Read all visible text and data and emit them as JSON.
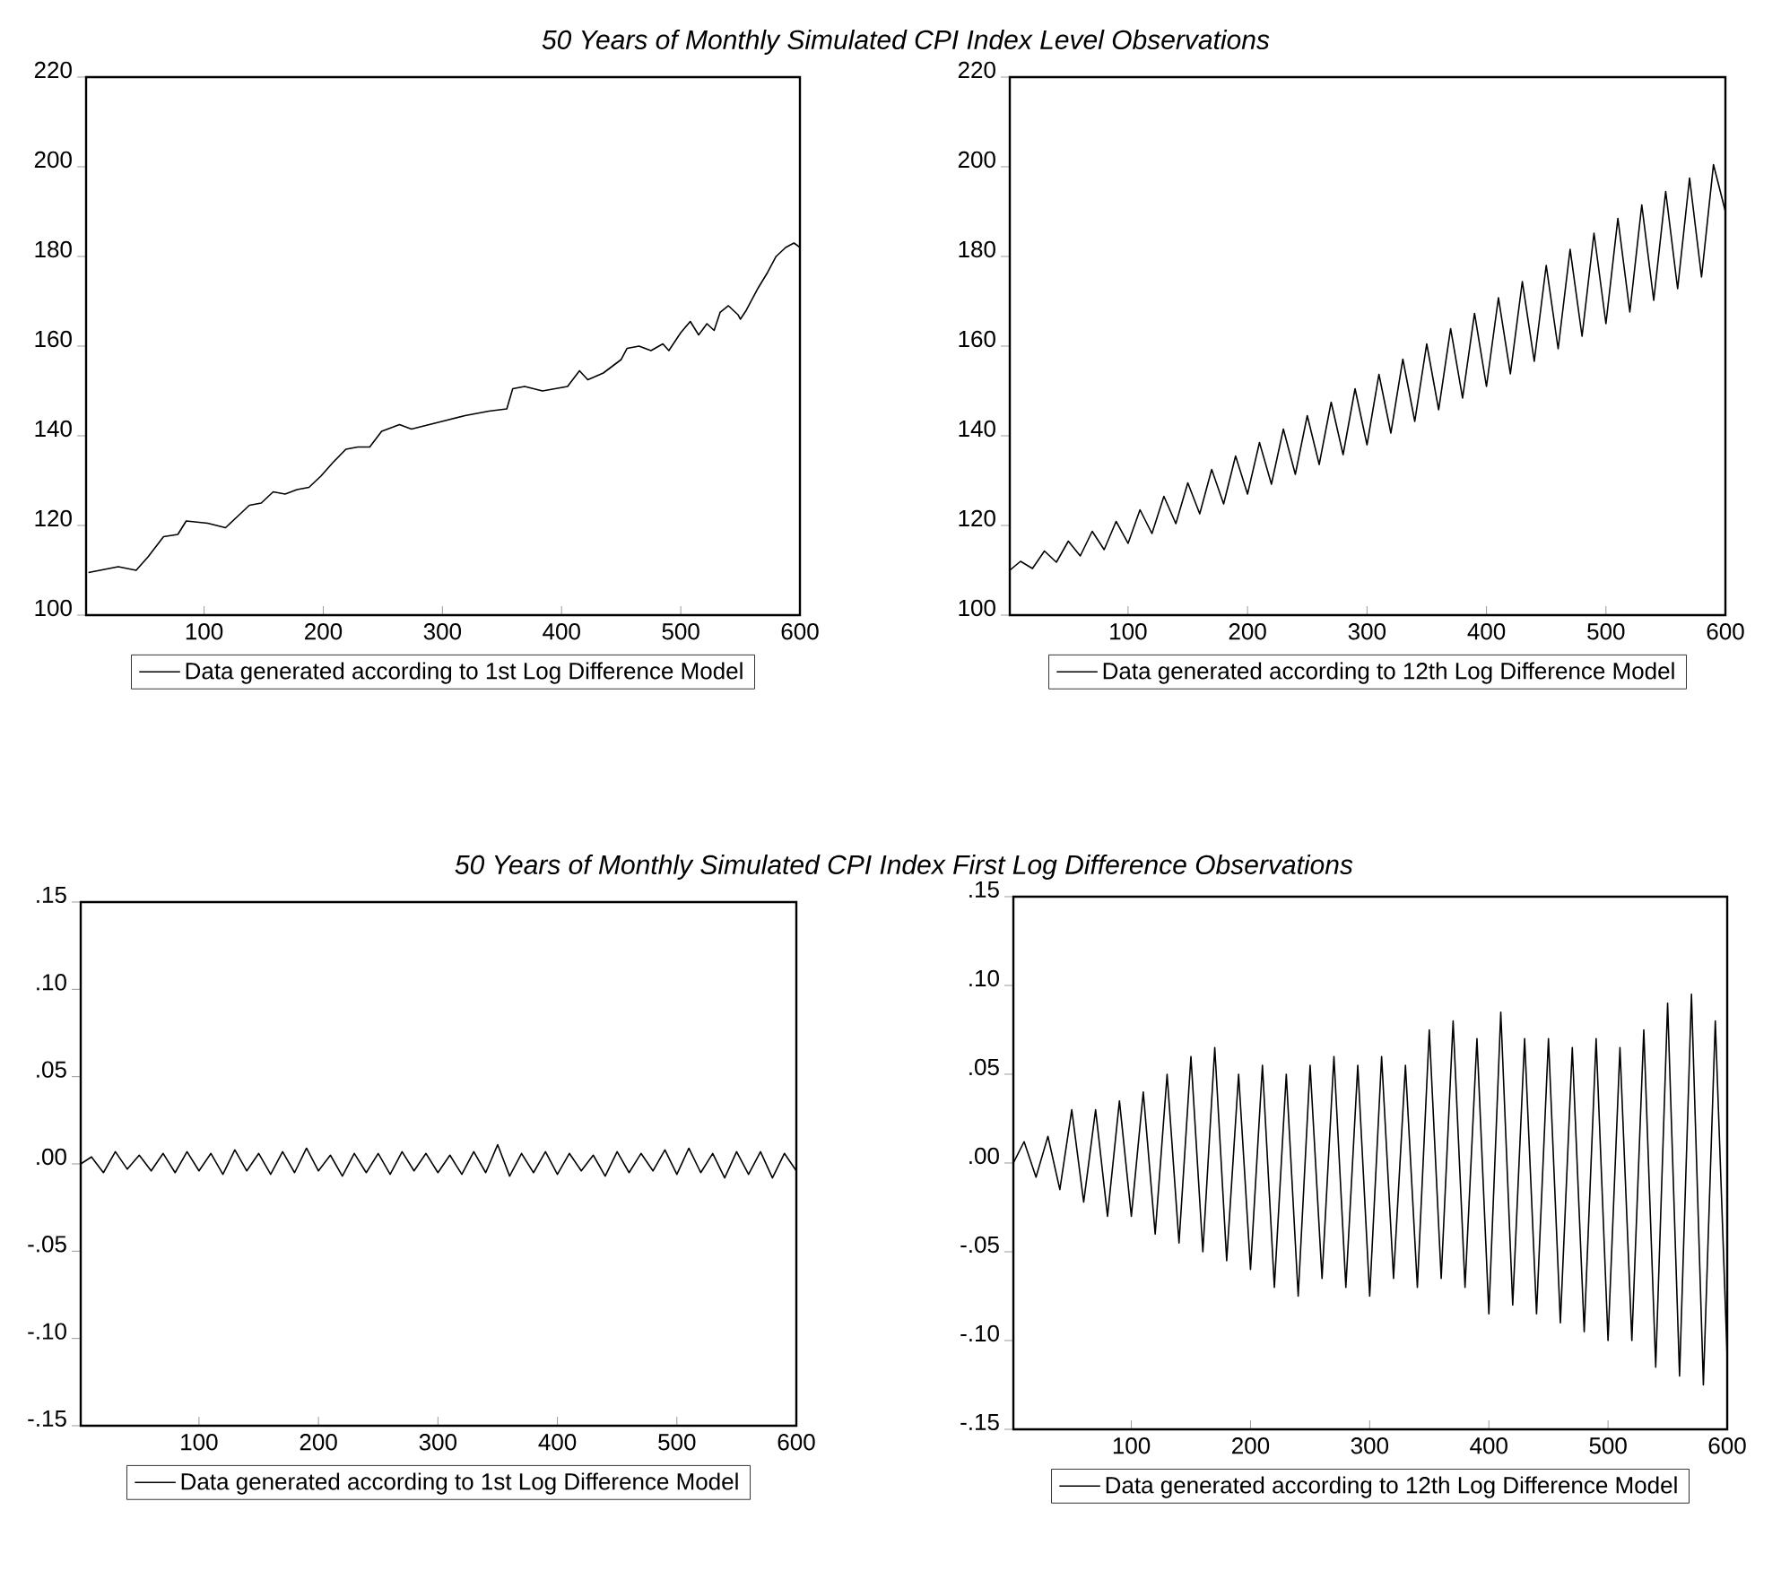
{
  "chart_data": [
    {
      "type": "line",
      "title": "50 Years of Monthly Simulated CPI Index Level Observations",
      "xlim": [
        1,
        600
      ],
      "xticks": [
        100,
        200,
        300,
        400,
        500,
        600
      ],
      "ylim": [
        100,
        220
      ],
      "yticks": [
        100,
        120,
        140,
        160,
        180,
        200,
        220
      ],
      "legend": "bottom",
      "marker": "none",
      "line_style": "solid",
      "grid": false,
      "series": [
        {
          "name": "Data generated according to 1st Log Difference Model",
          "color": "#000000",
          "x": [
            3,
            28,
            43,
            53,
            66,
            78,
            85,
            103,
            118,
            128,
            138,
            148,
            158,
            168,
            178,
            188,
            198,
            208,
            219,
            229,
            239,
            249,
            264,
            274,
            289,
            304,
            319,
            339,
            354,
            359,
            369,
            384,
            405,
            415,
            422,
            435,
            450,
            455,
            465,
            475,
            485,
            490,
            500,
            508,
            515,
            522,
            528,
            533,
            540,
            548,
            550,
            555,
            565,
            573,
            580,
            588,
            595,
            600
          ],
          "values": [
            109.5,
            110.8,
            110,
            113,
            117.5,
            118,
            121,
            120.5,
            119.5,
            122,
            124.5,
            125,
            127.5,
            127,
            128,
            128.5,
            131,
            134,
            137,
            137.5,
            137.5,
            141,
            142.5,
            141.5,
            142.5,
            143.5,
            144.5,
            145.5,
            146,
            150.5,
            151,
            150,
            151,
            154.5,
            152.5,
            154,
            157,
            159.5,
            160,
            159,
            160.5,
            159,
            163,
            165.5,
            162.5,
            165,
            163.5,
            167.5,
            169,
            167,
            166,
            168,
            173,
            176.5,
            180,
            182,
            183,
            182
          ]
        }
      ]
    },
    {
      "type": "line",
      "xlim": [
        1,
        600
      ],
      "xticks": [
        100,
        200,
        300,
        400,
        500,
        600
      ],
      "ylim": [
        100,
        220
      ],
      "yticks": [
        100,
        120,
        140,
        160,
        180,
        200,
        220
      ],
      "legend": "bottom",
      "marker": "none",
      "line_style": "solid",
      "grid": false,
      "series": [
        {
          "name": "Data generated according to 12th Log Difference Model",
          "color": "#000000",
          "x": [
            1,
            10,
            20,
            30,
            40,
            50,
            60,
            70,
            80,
            90,
            100,
            110,
            120,
            130,
            140,
            150,
            160,
            170,
            180,
            190,
            200,
            210,
            220,
            230,
            240,
            250,
            260,
            270,
            280,
            290,
            300,
            310,
            320,
            330,
            340,
            350,
            360,
            370,
            380,
            390,
            400,
            410,
            420,
            430,
            440,
            450,
            460,
            470,
            480,
            490,
            500,
            510,
            520,
            530,
            540,
            550,
            560,
            570,
            580,
            590,
            600
          ],
          "values": [
            110,
            112,
            110.4,
            114.3,
            111.8,
            116.5,
            113.2,
            118.7,
            114.6,
            120.9,
            116,
            123.5,
            118.2,
            126.5,
            120.4,
            129.5,
            122.6,
            132.5,
            124.8,
            135.5,
            127,
            138.5,
            129.2,
            141.5,
            131.4,
            144.5,
            133.6,
            147.5,
            135.8,
            150.5,
            138,
            153.7,
            140.6,
            157.1,
            143.2,
            160.5,
            145.8,
            163.9,
            148.4,
            167.3,
            151,
            170.8,
            153.8,
            174.4,
            156.6,
            178,
            159.4,
            181.6,
            162.2,
            185.2,
            165,
            188.5,
            167.6,
            191.5,
            170.2,
            194.5,
            172.8,
            197.5,
            175.4,
            200.5,
            190
          ]
        }
      ]
    },
    {
      "type": "line",
      "title": "50 Years of Monthly Simulated CPI Index First Log Difference Observations",
      "xlim": [
        1,
        600
      ],
      "xticks": [
        100,
        200,
        300,
        400,
        500,
        600
      ],
      "ylim": [
        -0.15,
        0.15
      ],
      "yticks": [
        {
          "value": -0.15,
          "label": "-.15"
        },
        {
          "value": -0.1,
          "label": "-.10"
        },
        {
          "value": -0.05,
          "label": "-.05"
        },
        {
          "value": 0,
          "label": ".00"
        },
        {
          "value": 0.05,
          "label": ".05"
        },
        {
          "value": 0.1,
          "label": ".10"
        },
        {
          "value": 0.15,
          "label": ".15"
        }
      ],
      "legend": "bottom",
      "marker": "none",
      "line_style": "solid",
      "grid": false,
      "series": [
        {
          "name": "Data generated according to 1st Log Difference Model",
          "color": "#000000",
          "x": [
            1,
            10,
            20,
            30,
            40,
            50,
            60,
            70,
            80,
            90,
            100,
            110,
            120,
            130,
            140,
            150,
            160,
            170,
            180,
            190,
            200,
            210,
            220,
            230,
            240,
            250,
            260,
            270,
            280,
            290,
            300,
            310,
            320,
            330,
            340,
            350,
            360,
            370,
            380,
            390,
            400,
            410,
            420,
            430,
            440,
            450,
            460,
            470,
            480,
            490,
            500,
            510,
            520,
            530,
            540,
            550,
            560,
            570,
            580,
            590,
            600
          ],
          "values": [
            0,
            0.004,
            -0.005,
            0.007,
            -0.003,
            0.005,
            -0.004,
            0.006,
            -0.005,
            0.007,
            -0.004,
            0.006,
            -0.006,
            0.008,
            -0.004,
            0.006,
            -0.006,
            0.007,
            -0.005,
            0.009,
            -0.004,
            0.005,
            -0.007,
            0.006,
            -0.005,
            0.006,
            -0.006,
            0.007,
            -0.004,
            0.006,
            -0.005,
            0.005,
            -0.006,
            0.007,
            -0.005,
            0.011,
            -0.007,
            0.006,
            -0.005,
            0.007,
            -0.006,
            0.006,
            -0.004,
            0.005,
            -0.007,
            0.007,
            -0.005,
            0.006,
            -0.004,
            0.008,
            -0.006,
            0.009,
            -0.005,
            0.006,
            -0.008,
            0.007,
            -0.006,
            0.007,
            -0.008,
            0.006,
            -0.004
          ]
        }
      ]
    },
    {
      "type": "line",
      "xlim": [
        1,
        600
      ],
      "xticks": [
        100,
        200,
        300,
        400,
        500,
        600
      ],
      "ylim": [
        -0.15,
        0.15
      ],
      "yticks": [
        {
          "value": -0.15,
          "label": "-.15"
        },
        {
          "value": -0.1,
          "label": "-.10"
        },
        {
          "value": -0.05,
          "label": "-.05"
        },
        {
          "value": 0,
          "label": ".00"
        },
        {
          "value": 0.05,
          "label": ".05"
        },
        {
          "value": 0.1,
          "label": ".10"
        },
        {
          "value": 0.15,
          "label": ".15"
        }
      ],
      "legend": "bottom",
      "marker": "none",
      "line_style": "solid",
      "grid": false,
      "series": [
        {
          "name": "Data generated according to 12th Log Difference Model",
          "color": "#000000",
          "x": [
            1,
            10,
            20,
            30,
            40,
            50,
            60,
            70,
            80,
            90,
            100,
            110,
            120,
            130,
            140,
            150,
            160,
            170,
            180,
            190,
            200,
            210,
            220,
            230,
            240,
            250,
            260,
            270,
            280,
            290,
            300,
            310,
            320,
            330,
            340,
            350,
            360,
            370,
            380,
            390,
            400,
            410,
            420,
            430,
            440,
            450,
            460,
            470,
            480,
            490,
            500,
            510,
            520,
            530,
            540,
            550,
            560,
            570,
            580,
            590,
            600
          ],
          "values": [
            0,
            0.012,
            -0.008,
            0.015,
            -0.015,
            0.03,
            -0.022,
            0.03,
            -0.03,
            0.035,
            -0.03,
            0.04,
            -0.04,
            0.05,
            -0.045,
            0.06,
            -0.05,
            0.065,
            -0.055,
            0.05,
            -0.06,
            0.055,
            -0.07,
            0.05,
            -0.075,
            0.055,
            -0.065,
            0.06,
            -0.07,
            0.055,
            -0.075,
            0.06,
            -0.065,
            0.055,
            -0.07,
            0.075,
            -0.065,
            0.08,
            -0.07,
            0.07,
            -0.085,
            0.085,
            -0.08,
            0.07,
            -0.085,
            0.07,
            -0.09,
            0.065,
            -0.095,
            0.07,
            -0.1,
            0.065,
            -0.1,
            0.075,
            -0.115,
            0.09,
            -0.12,
            0.095,
            -0.125,
            0.08,
            -0.11
          ]
        }
      ]
    }
  ]
}
